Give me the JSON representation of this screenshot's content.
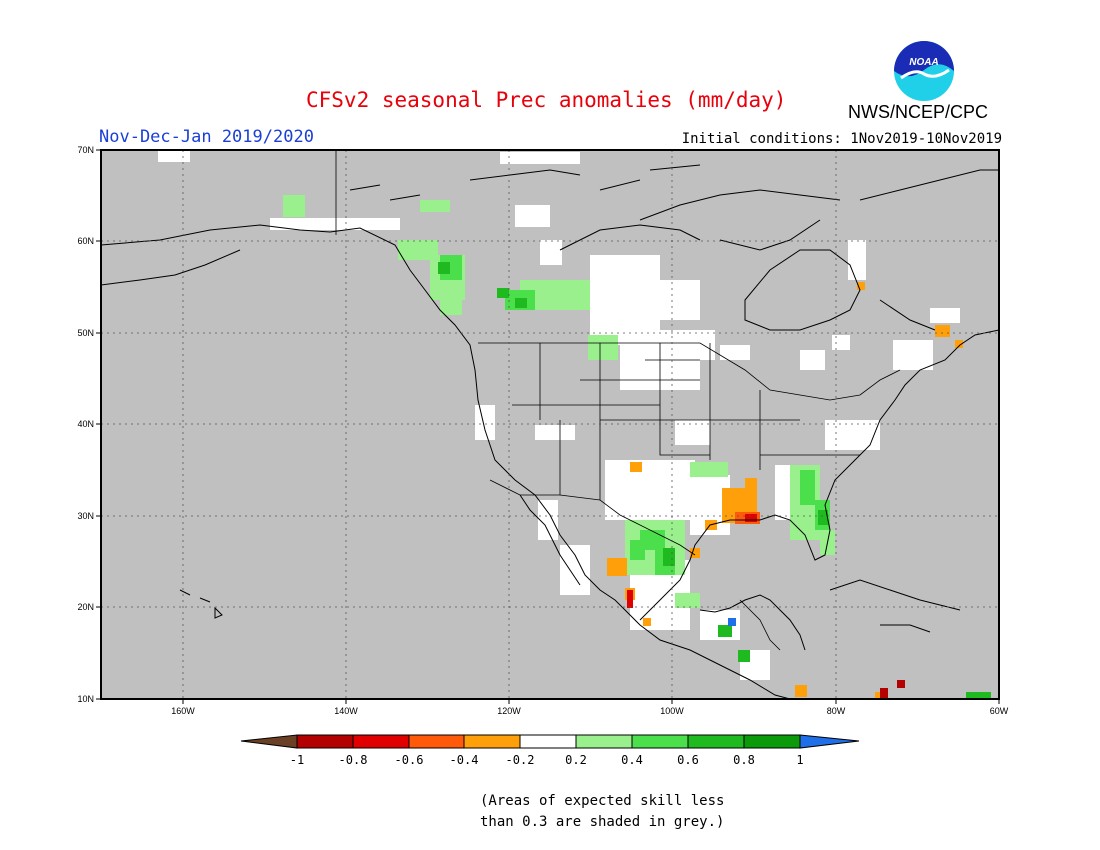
{
  "header": {
    "title": "CFSv2 seasonal Prec anomalies (mm/day)",
    "season": "Nov-Dec-Jan 2019/2020",
    "initial_conditions": "Initial conditions: 1Nov2019-10Nov2019",
    "organization": "NWS/NCEP/CPC",
    "logo_text": "NOAA"
  },
  "map": {
    "region": "North America",
    "lat_range": [
      10,
      70
    ],
    "lon_range": [
      -170,
      -60
    ],
    "lat_ticks": [
      "70N",
      "60N",
      "50N",
      "40N",
      "30N",
      "20N",
      "10N"
    ],
    "lon_ticks": [
      "160W",
      "140W",
      "120W",
      "100W",
      "80W",
      "60W"
    ],
    "background_color": "#c0c0c0",
    "grid": "dotted"
  },
  "colorbar": {
    "labels": [
      "-1",
      "-0.8",
      "-0.6",
      "-0.4",
      "-0.2",
      "0.2",
      "0.4",
      "0.6",
      "0.8",
      "1"
    ],
    "colors": [
      "#6b4024",
      "#b30000",
      "#e00000",
      "#ff5a0a",
      "#ff9f0a",
      "#ffffff",
      "#9bf08e",
      "#4be04b",
      "#1fba1f",
      "#0a9a0a",
      "#1f6fe8"
    ]
  },
  "footnote": {
    "line1": "(Areas of expected skill less",
    "line2": "than 0.3 are shaded in grey.)"
  }
}
